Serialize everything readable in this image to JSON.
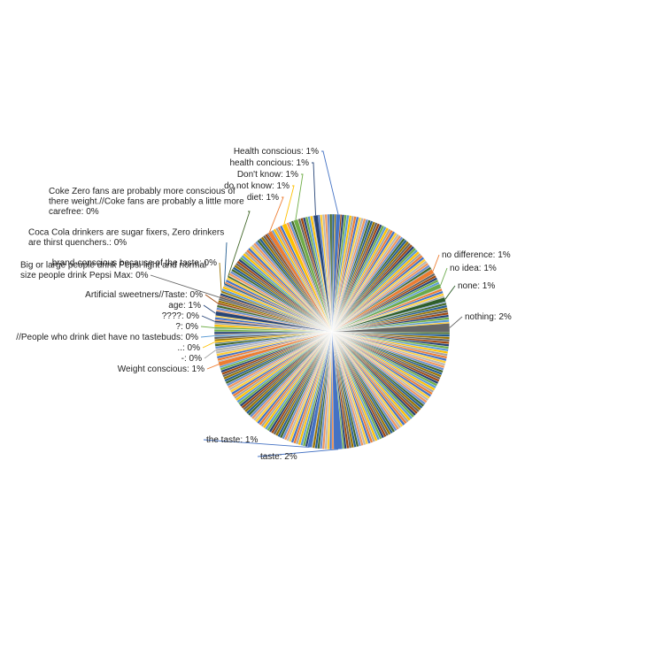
{
  "chart_data": {
    "type": "pie",
    "labeled_slices": [
      {
        "label": "nothing",
        "value": 2,
        "color": "#666666"
      },
      {
        "label": "none",
        "value": 1,
        "color": "#2e5e2a"
      },
      {
        "label": "no idea",
        "value": 1,
        "color": "#6aaa4b"
      },
      {
        "label": "no difference",
        "value": 1,
        "color": "#ed7d31"
      },
      {
        "label": "taste",
        "value": 2,
        "color": "#4472c4"
      },
      {
        "label": "the taste",
        "value": 1,
        "color": "#4472c4"
      },
      {
        "label": "Weight conscious",
        "value": 1,
        "color": "#ed7d31"
      },
      {
        "label": "-",
        "value": 0,
        "color": "#a5a5a5"
      },
      {
        "label": "..",
        "value": 0,
        "color": "#ffc000"
      },
      {
        "label": "//People who drink diet have no tastebuds",
        "value": 0,
        "color": "#5b9bd5"
      },
      {
        "label": "?",
        "value": 0,
        "color": "#70ad47"
      },
      {
        "label": "????",
        "value": 0,
        "color": "#264478"
      },
      {
        "label": "age",
        "value": 1,
        "color": "#264478"
      },
      {
        "label": "Artificial sweetners//Taste",
        "value": 0,
        "color": "#9e480e"
      },
      {
        "label": "Big or large people drink Pepsi light and normal size people drink Pepsi Max",
        "value": 0,
        "color": "#636363"
      },
      {
        "label": "brand-conscious because of the taste",
        "value": 0,
        "color": "#997300"
      },
      {
        "label": "Coca Cola drinkers are sugar fixers, Zero drinkers are thirst quenchers.",
        "value": 0,
        "color": "#255e91"
      },
      {
        "label": "Coke Zero fans are probably more conscious of there weight.//Coke fans are probably a little more carefree",
        "value": 0,
        "color": "#43682b"
      },
      {
        "label": "diet",
        "value": 1,
        "color": "#ed7d31"
      },
      {
        "label": "do not know",
        "value": 1,
        "color": "#ffc000"
      },
      {
        "label": "Don't know",
        "value": 1,
        "color": "#70ad47"
      },
      {
        "label": "health concious",
        "value": 1,
        "color": "#264478"
      },
      {
        "label": "Health conscious",
        "value": 1,
        "color": "#4472c4"
      }
    ],
    "data_labels": [
      "nothing: 2%",
      "none: 1%",
      "no idea: 1%",
      "no difference: 1%",
      "taste: 2%",
      "the taste: 1%",
      "Weight conscious: 1%",
      "-: 0%",
      "..: 0%",
      "//People who drink diet have no tastebuds: 0%",
      "?: 0%",
      "????: 0%",
      "age: 1%",
      "Artificial sweetners//Taste: 0%",
      [
        "Big or large people drink Pepsi light and normal",
        "size people drink Pepsi Max: 0%"
      ],
      "brand-conscious because of the taste: 0%",
      [
        "Coca Cola drinkers are sugar fixers, Zero drinkers",
        "are thirst quenchers.: 0%"
      ],
      [
        "Coke Zero fans are probably more conscious of",
        "there weight.//Coke fans are probably a little more",
        "carefree: 0%"
      ],
      "diet: 1%",
      "do not know: 1%",
      "Don't know: 1%",
      "health concious: 1%",
      "Health conscious: 1%"
    ],
    "unlabeled_small_slices": {
      "count": 300,
      "value_each_percent": 0.28,
      "palette": [
        "#4472c4",
        "#ed7d31",
        "#a5a5a5",
        "#ffc000",
        "#5b9bd5",
        "#70ad47",
        "#264478",
        "#9e480e",
        "#636363",
        "#997300",
        "#255e91",
        "#43682b",
        "#698ed0",
        "#f1975a",
        "#b7b7b7",
        "#ffcd33"
      ]
    },
    "legend": "none",
    "slice_border_color": "#ffffff"
  }
}
